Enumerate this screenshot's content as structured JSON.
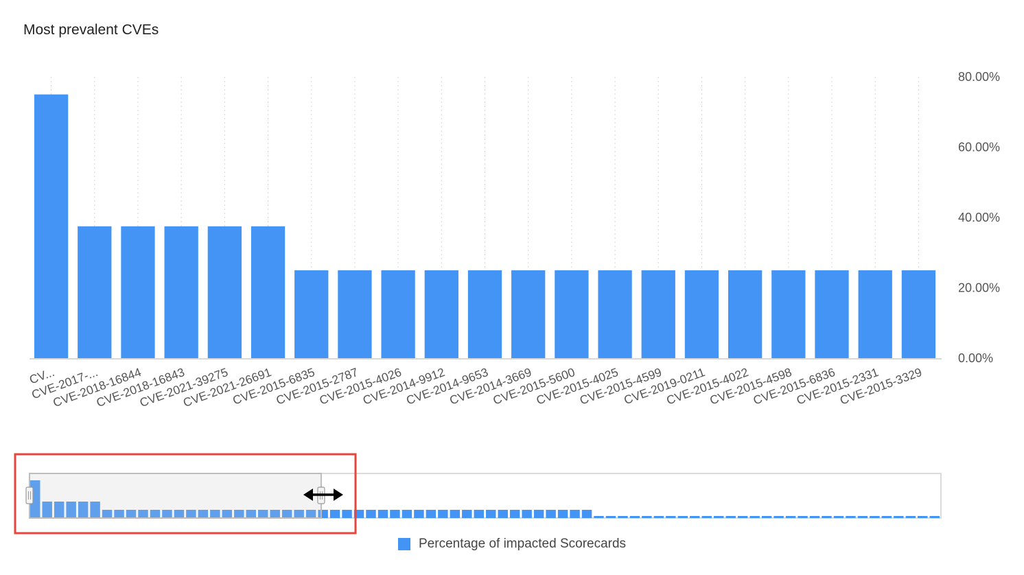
{
  "chart_data": {
    "type": "bar",
    "title": "Most prevalent CVEs",
    "categories": [
      "CV...",
      "CVE-2017-...",
      "CVE-2018-16844",
      "CVE-2018-16843",
      "CVE-2021-39275",
      "CVE-2021-26691",
      "CVE-2015-6835",
      "CVE-2015-2787",
      "CVE-2015-4026",
      "CVE-2014-9912",
      "CVE-2014-9653",
      "CVE-2014-3669",
      "CVE-2015-5600",
      "CVE-2015-4025",
      "CVE-2015-4599",
      "CVE-2019-0211",
      "CVE-2015-4022",
      "CVE-2015-4598",
      "CVE-2015-6836",
      "CVE-2015-2331",
      "CVE-2015-3329"
    ],
    "series": [
      {
        "name": "Percentage of impacted Scorecards",
        "values": [
          75,
          37.5,
          37.5,
          37.5,
          37.5,
          37.5,
          25,
          25,
          25,
          25,
          25,
          25,
          25,
          25,
          25,
          25,
          25,
          25,
          25,
          25,
          25
        ]
      }
    ],
    "y_ticks": [
      "0.00%",
      "20.00%",
      "40.00%",
      "60.00%",
      "80.00%"
    ],
    "ylim": [
      0,
      80
    ],
    "y_axis_side": "right",
    "grid": "vertical dotted",
    "legend_position": "bottom-center",
    "bar_color": "#4394f5",
    "highlight_color": "#e8453c",
    "navigator": {
      "values": [
        75,
        37.5,
        37.5,
        37.5,
        37.5,
        37.5,
        25,
        25,
        25,
        25,
        25,
        25,
        25,
        25,
        25,
        25,
        25,
        25,
        25,
        25,
        25,
        25,
        25,
        25,
        25,
        25,
        25,
        25,
        25,
        25,
        25,
        25,
        25,
        25,
        25,
        25,
        25,
        25,
        25,
        25,
        25,
        25,
        25,
        25,
        25,
        25,
        25,
        12.5,
        12.5,
        12.5,
        12.5,
        12.5,
        12.5,
        12.5,
        12.5,
        12.5,
        12.5,
        12.5,
        12.5,
        12.5,
        12.5,
        12.5,
        12.5,
        12.5,
        12.5,
        12.5,
        12.5,
        12.5,
        12.5,
        12.5,
        12.5,
        12.5,
        12.5,
        12.5,
        12.5,
        12.5
      ],
      "window": [
        0,
        0.32
      ]
    }
  }
}
